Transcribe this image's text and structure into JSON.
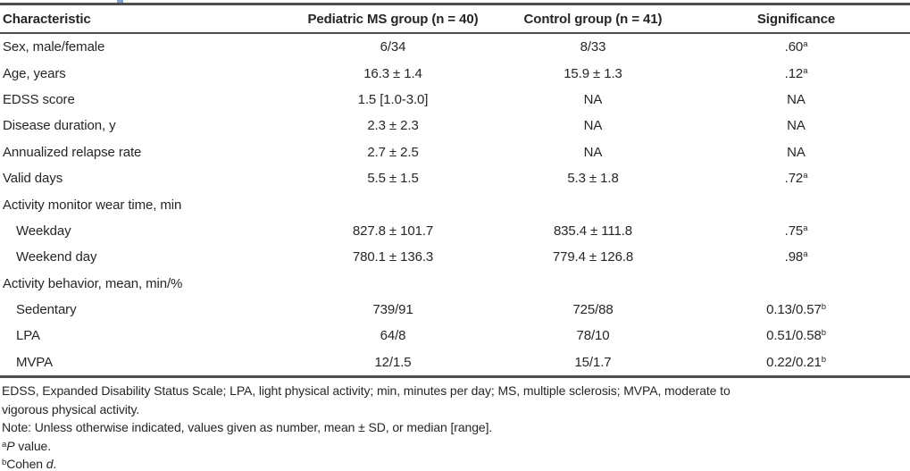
{
  "colors": {
    "rule": "#4e4e50",
    "text": "#262626",
    "top_artifact_blue": "#79a5d6",
    "background": "#ffffff"
  },
  "table": {
    "columns": [
      "Characteristic",
      "Pediatric MS group (n = 40)",
      "Control group (n = 41)",
      "Significance"
    ],
    "rows": [
      {
        "label": "Sex, male/female",
        "indent": false,
        "ms": "6/34",
        "control": "8/33",
        "sig": ".60",
        "sig_sup": "a"
      },
      {
        "label": "Age, years",
        "indent": false,
        "ms": "16.3 ± 1.4",
        "control": "15.9 ± 1.3",
        "sig": ".12",
        "sig_sup": "a"
      },
      {
        "label": "EDSS score",
        "indent": false,
        "ms": "1.5 [1.0-3.0]",
        "control": "NA",
        "sig": "NA",
        "sig_sup": ""
      },
      {
        "label": "Disease duration, y",
        "indent": false,
        "ms": "2.3 ± 2.3",
        "control": "NA",
        "sig": "NA",
        "sig_sup": ""
      },
      {
        "label": "Annualized relapse rate",
        "indent": false,
        "ms": "2.7 ± 2.5",
        "control": "NA",
        "sig": "NA",
        "sig_sup": ""
      },
      {
        "label": "Valid days",
        "indent": false,
        "ms": "5.5 ± 1.5",
        "control": "5.3 ± 1.8",
        "sig": ".72",
        "sig_sup": "a"
      },
      {
        "label": "Activity monitor wear time, min",
        "indent": false,
        "ms": "",
        "control": "",
        "sig": "",
        "sig_sup": ""
      },
      {
        "label": "Weekday",
        "indent": true,
        "ms": "827.8 ± 101.7",
        "control": "835.4 ± 111.8",
        "sig": ".75",
        "sig_sup": "a"
      },
      {
        "label": "Weekend day",
        "indent": true,
        "ms": "780.1 ± 136.3",
        "control": "779.4 ± 126.8",
        "sig": ".98",
        "sig_sup": "a"
      },
      {
        "label": "Activity behavior, mean, min/%",
        "indent": false,
        "ms": "",
        "control": "",
        "sig": "",
        "sig_sup": ""
      },
      {
        "label": "Sedentary",
        "indent": true,
        "ms": "739/91",
        "control": "725/88",
        "sig": "0.13/0.57",
        "sig_sup": "b"
      },
      {
        "label": "LPA",
        "indent": true,
        "ms": "64/8",
        "control": "78/10",
        "sig": "0.51/0.58",
        "sig_sup": "b"
      },
      {
        "label": "MVPA",
        "indent": true,
        "ms": "12/1.5",
        "control": "15/1.7",
        "sig": "0.22/0.21",
        "sig_sup": "b"
      }
    ]
  },
  "footnotes": {
    "abbreviation_lines": [
      "EDSS, Expanded Disability Status Scale; LPA, light physical activity; min, minutes per day; MS, multiple sclerosis; MVPA, moderate to",
      "vigorous physical activity."
    ],
    "note": "Note: Unless otherwise indicated, values given as number, mean ± SD, or median [range].",
    "fn_a": {
      "marker": "a",
      "italic": "P",
      "rest": " value."
    },
    "fn_b": {
      "marker": "b",
      "pre": "Cohen ",
      "italic": "d",
      "rest": "."
    }
  }
}
